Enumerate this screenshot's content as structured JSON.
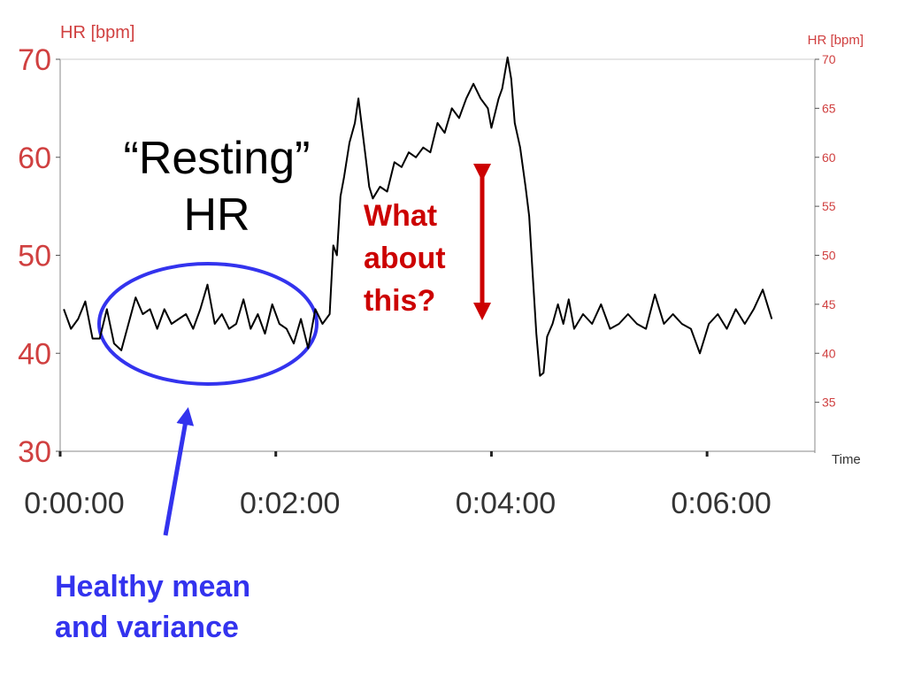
{
  "chart_data": {
    "type": "line",
    "y_label": "HR [bpm]",
    "y2_label": "HR [bpm]",
    "x_label": "Time",
    "annotations": {
      "resting": [
        "“Resting”",
        "HR"
      ],
      "question": [
        "What",
        "about",
        "this?"
      ],
      "healthy": [
        "Healthy mean",
        "and variance"
      ]
    },
    "xlim": [
      0,
      420
    ],
    "xticks": [
      {
        "value": 0,
        "label": "0:00:00"
      },
      {
        "value": 120,
        "label": "0:02:00"
      },
      {
        "value": 240,
        "label": "0:04:00"
      },
      {
        "value": 360,
        "label": "0:06:00"
      }
    ],
    "ylim": [
      30,
      70
    ],
    "yticks": [
      30,
      40,
      50,
      60,
      70
    ],
    "y2lim": [
      30,
      70
    ],
    "y2ticks": [
      35,
      40,
      45,
      50,
      55,
      60,
      65,
      70
    ],
    "x": [
      2,
      6,
      10,
      14,
      18,
      22,
      26,
      30,
      34,
      38,
      42,
      46,
      50,
      54,
      58,
      62,
      66,
      70,
      74,
      78,
      82,
      86,
      90,
      94,
      98,
      102,
      106,
      110,
      114,
      118,
      122,
      126,
      130,
      134,
      138,
      142,
      146,
      150,
      152,
      154,
      156,
      158,
      161,
      164,
      166,
      168,
      170,
      172,
      174,
      178,
      182,
      186,
      190,
      194,
      198,
      202,
      206,
      210,
      214,
      218,
      222,
      226,
      230,
      234,
      238,
      240,
      244,
      246,
      249,
      251,
      253,
      256,
      259,
      261,
      263,
      265,
      267,
      269,
      271,
      274,
      277,
      280,
      283,
      286,
      291,
      296,
      301,
      306,
      311,
      316,
      321,
      326,
      331,
      336,
      341,
      346,
      351,
      356,
      361,
      366,
      371,
      376,
      381,
      386,
      391,
      396
    ],
    "series": [
      {
        "name": "HR",
        "color": "#000000",
        "values": [
          44.5,
          42.5,
          43.5,
          45.3,
          41.5,
          41.5,
          44.5,
          41,
          40.3,
          43,
          45.7,
          44,
          44.5,
          42.5,
          44.5,
          43,
          43.5,
          44,
          42.5,
          44.5,
          47,
          43,
          44,
          42.5,
          43,
          45.5,
          42.5,
          44,
          42,
          45,
          43,
          42.5,
          41,
          43.5,
          40.5,
          44.5,
          43,
          44,
          51,
          50,
          56,
          58,
          61.5,
          63.5,
          66,
          63,
          60,
          57,
          55.8,
          57,
          56.5,
          59.5,
          59,
          60.5,
          60,
          61,
          60.5,
          63.5,
          62.5,
          65,
          64,
          66,
          67.5,
          66,
          65,
          63,
          66,
          67,
          70.2,
          68,
          63.5,
          61,
          57,
          54,
          48,
          42,
          37.7,
          38,
          41.7,
          43,
          45,
          43,
          45.5,
          42.5,
          44,
          43,
          45,
          42.5,
          43,
          44,
          43,
          42.5,
          46,
          43,
          44,
          43,
          42.5,
          40,
          43,
          44,
          42.5,
          44.5,
          43,
          44.5,
          46.5,
          43.5
        ]
      }
    ]
  }
}
